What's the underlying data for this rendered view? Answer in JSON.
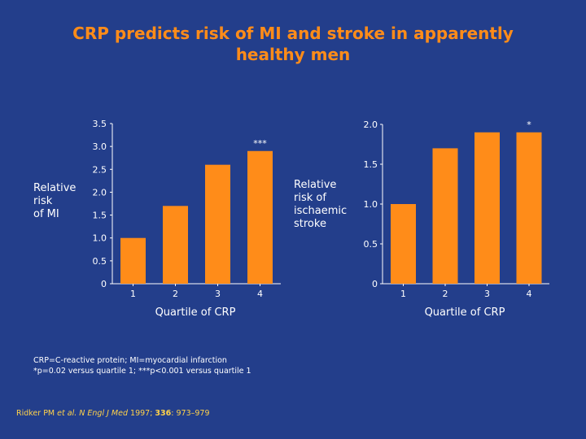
{
  "title": {
    "line1": "CRP predicts risk of MI and stroke in apparently",
    "line2": "healthy men"
  },
  "colors": {
    "background": "#233e8b",
    "title": "#ff8c19",
    "bar": "#ff8c19",
    "axis": "#ffffff",
    "citation": "#ffd24a"
  },
  "chart_data": [
    {
      "type": "bar",
      "categories": [
        "1",
        "2",
        "3",
        "4"
      ],
      "values": [
        1.0,
        1.7,
        2.6,
        2.9
      ],
      "annotations": [
        "",
        "",
        "",
        "***"
      ],
      "ylabel_lines": [
        "Relative",
        "risk",
        "of MI"
      ],
      "xlabel": "Quartile of CRP",
      "ylim": [
        0,
        3.5
      ],
      "yticks": [
        "0",
        "0.5",
        "1.0",
        "1.5",
        "2.0",
        "2.5",
        "3.0",
        "3.5"
      ],
      "ytick_values": [
        0,
        0.5,
        1.0,
        1.5,
        2.0,
        2.5,
        3.0,
        3.5
      ],
      "grid": false
    },
    {
      "type": "bar",
      "categories": [
        "1",
        "2",
        "3",
        "4"
      ],
      "values": [
        1.0,
        1.7,
        1.9,
        1.9
      ],
      "annotations": [
        "",
        "",
        "",
        "*"
      ],
      "ylabel_lines": [
        "Relative",
        "risk of",
        "ischaemic",
        "stroke"
      ],
      "xlabel": "Quartile of CRP",
      "ylim": [
        0,
        2.0
      ],
      "yticks": [
        "0",
        "0.5",
        "1.0",
        "1.5",
        "2.0"
      ],
      "ytick_values": [
        0,
        0.5,
        1.0,
        1.5,
        2.0
      ],
      "grid": false
    }
  ],
  "footnote": {
    "line1": "CRP=C-reactive protein; MI=myocardial infarction",
    "line2": "*p=0.02 versus quartile 1; ***p<0.001 versus quartile 1"
  },
  "citation": {
    "authors": "Ridker PM ",
    "etal": "et al.",
    "journal": "N Engl J Med",
    "year": " 1997; ",
    "volume": "336",
    "pages": ": 973–979"
  }
}
